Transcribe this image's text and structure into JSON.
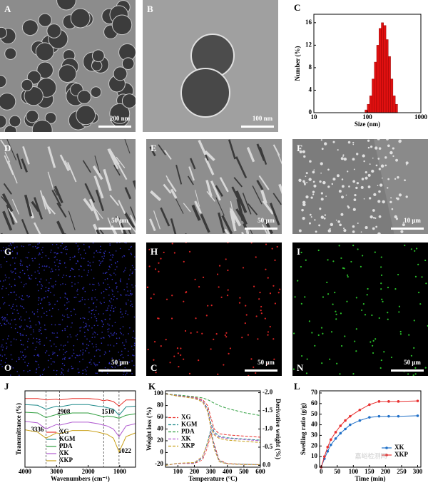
{
  "image_panels": [
    {
      "label": "A",
      "scale_bar": "200 nm"
    },
    {
      "label": "B",
      "scale_bar": "100 nm"
    },
    {
      "label": "D",
      "scale_bar": "50 μm"
    },
    {
      "label": "E",
      "scale_bar": "50 μm"
    },
    {
      "label": "F",
      "scale_bar": "10 μm"
    },
    {
      "label": "G",
      "element": "O",
      "scale_bar": "50 μm"
    },
    {
      "label": "H",
      "element": "C",
      "scale_bar": "50 μm"
    },
    {
      "label": "I",
      "element": "N",
      "scale_bar": "50 μm"
    }
  ],
  "chart_data": [
    {
      "type": "histogram",
      "panel": "C",
      "x_label": "Size (nm)",
      "y_label": "Number (%)",
      "xlog": true,
      "xlim": [
        10,
        1000
      ],
      "xticks": [
        10,
        100,
        1000
      ],
      "ylim": [
        0,
        17.5
      ],
      "yticks": [
        0,
        4,
        8,
        12,
        16
      ],
      "color": "#e01010",
      "bins": [
        90,
        99.5,
        110,
        122,
        135,
        149,
        165,
        182,
        201,
        223,
        246,
        272,
        301,
        333,
        368
      ],
      "counts": [
        0.5,
        1.5,
        3,
        6,
        9,
        12,
        15,
        16,
        15.5,
        13,
        10,
        6,
        3,
        1.5
      ]
    },
    {
      "type": "line",
      "panel": "J",
      "x_label": "Wavenumbers (cm⁻¹)",
      "y_label": "Transmittance (%)",
      "xlim": [
        4000,
        500
      ],
      "xticks": [
        4000,
        3000,
        2000,
        1000
      ],
      "ylim": [
        0,
        100
      ],
      "legend": "lower center",
      "x": [
        4000,
        3600,
        3336,
        3000,
        2908,
        2500,
        2000,
        1700,
        1510,
        1400,
        1200,
        1022,
        800,
        500
      ],
      "series": [
        {
          "name": "XG",
          "color": "#e8302a",
          "values": [
            90,
            90,
            88,
            89,
            88,
            90,
            90,
            89,
            87,
            88,
            86,
            80,
            88,
            88
          ]
        },
        {
          "name": "KGM",
          "color": "#1f8a8a",
          "values": [
            82,
            81,
            76,
            80,
            79,
            82,
            82,
            80,
            79,
            78,
            76,
            68,
            79,
            80
          ]
        },
        {
          "name": "PDA",
          "color": "#2e9e3e",
          "values": [
            72,
            71,
            65,
            69,
            68,
            71,
            71,
            68,
            66,
            67,
            66,
            64,
            68,
            70
          ]
        },
        {
          "name": "XK",
          "color": "#b05ad0",
          "values": [
            60,
            58,
            50,
            56,
            55,
            59,
            59,
            57,
            55,
            54,
            50,
            40,
            54,
            57
          ]
        },
        {
          "name": "XKP",
          "color": "#c9a019",
          "values": [
            49,
            46,
            38,
            45,
            44,
            48,
            48,
            46,
            44,
            43,
            38,
            20,
            40,
            45
          ]
        }
      ],
      "reference_lines": [
        {
          "value": 3336,
          "label": "3336"
        },
        {
          "value": 2908,
          "label": "2908"
        },
        {
          "value": 1510,
          "label": "1510"
        },
        {
          "value": 1022,
          "label": "1022"
        }
      ]
    },
    {
      "type": "line",
      "panel": "K",
      "x_label": "Temperature (°C)",
      "y_label": "Weight loss (%)",
      "y2_label": "Derivative weight (%)",
      "line_style": "dashed",
      "legend": "center left",
      "xlim": [
        25,
        600
      ],
      "xticks": [
        100,
        200,
        300,
        400,
        500,
        600
      ],
      "ylim": [
        -25,
        105
      ],
      "yticks": [
        -20,
        0,
        20,
        40,
        60,
        80,
        100
      ],
      "y2lim": [
        0.05,
        -2.05
      ],
      "y2ticks": [
        {
          "value": -2,
          "label": "-2.0"
        },
        {
          "value": -1.5,
          "label": "-1.5"
        },
        {
          "value": -1,
          "label": "-1.0"
        },
        {
          "value": -0.5,
          "label": "-0.5"
        },
        {
          "value": 0,
          "label": "0.0"
        }
      ],
      "x": [
        25,
        100,
        200,
        250,
        280,
        300,
        320,
        350,
        400,
        500,
        600
      ],
      "series": [
        {
          "name": "XG",
          "color": "#e8302a",
          "values": [
            100,
            97,
            94,
            90,
            80,
            60,
            40,
            32,
            30,
            28,
            26
          ]
        },
        {
          "name": "KGM",
          "color": "#1f8a8a",
          "values": [
            100,
            96,
            93,
            88,
            75,
            50,
            35,
            28,
            25,
            23,
            21
          ]
        },
        {
          "name": "PDA",
          "color": "#2e9e3e",
          "values": [
            100,
            98,
            95,
            93,
            90,
            87,
            84,
            80,
            75,
            68,
            63
          ]
        },
        {
          "name": "XK",
          "color": "#b05ad0",
          "values": [
            100,
            97,
            93,
            88,
            72,
            45,
            32,
            26,
            24,
            22,
            20
          ]
        },
        {
          "name": "XKP",
          "color": "#c9a019",
          "values": [
            100,
            96,
            92,
            86,
            70,
            42,
            30,
            24,
            21,
            19,
            17
          ]
        }
      ],
      "derivative_series": [
        {
          "color": "#e8302a",
          "axis": "y2",
          "values": [
            0,
            -0.05,
            -0.05,
            -0.15,
            -0.5,
            -0.85,
            -0.6,
            -0.15,
            -0.05,
            -0.03,
            -0.02
          ]
        },
        {
          "color": "#1f8a8a",
          "axis": "y2",
          "values": [
            0,
            -0.06,
            -0.06,
            -0.2,
            -0.65,
            -1.0,
            -0.55,
            -0.12,
            -0.04,
            -0.03,
            -0.02
          ]
        },
        {
          "color": "#b05ad0",
          "axis": "y2",
          "values": [
            0,
            -0.05,
            -0.07,
            -0.22,
            -0.6,
            -0.95,
            -0.5,
            -0.1,
            -0.04,
            -0.02,
            -0.02
          ]
        },
        {
          "color": "#c9a019",
          "axis": "y2",
          "values": [
            0,
            -0.06,
            -0.08,
            -0.25,
            -0.62,
            -0.9,
            -0.45,
            -0.1,
            -0.04,
            -0.02,
            -0.02
          ]
        }
      ]
    },
    {
      "type": "line",
      "panel": "L",
      "x_label": "Time (min)",
      "y_label": "Swelling ratio (g/g)",
      "markers": true,
      "legend": "lower right",
      "xlim": [
        -5,
        310
      ],
      "xticks": [
        0,
        50,
        100,
        150,
        200,
        250,
        300
      ],
      "ylim": [
        0,
        72
      ],
      "yticks": [
        0,
        10,
        20,
        30,
        40,
        50,
        60,
        70
      ],
      "x": [
        0,
        10,
        20,
        30,
        45,
        60,
        75,
        90,
        120,
        150,
        180,
        210,
        240,
        300
      ],
      "series": [
        {
          "name": "XK",
          "color": "#2070c8",
          "values": [
            0,
            8,
            15,
            21,
            27,
            32,
            36,
            40,
            44,
            47,
            48,
            48,
            48,
            48.5
          ]
        },
        {
          "name": "XKP",
          "color": "#e83030",
          "values": [
            0,
            10,
            19,
            26,
            33,
            39,
            44,
            48,
            54,
            59,
            62,
            62,
            62,
            62.5
          ]
        }
      ],
      "watermark": "嘉峪检测网"
    }
  ]
}
